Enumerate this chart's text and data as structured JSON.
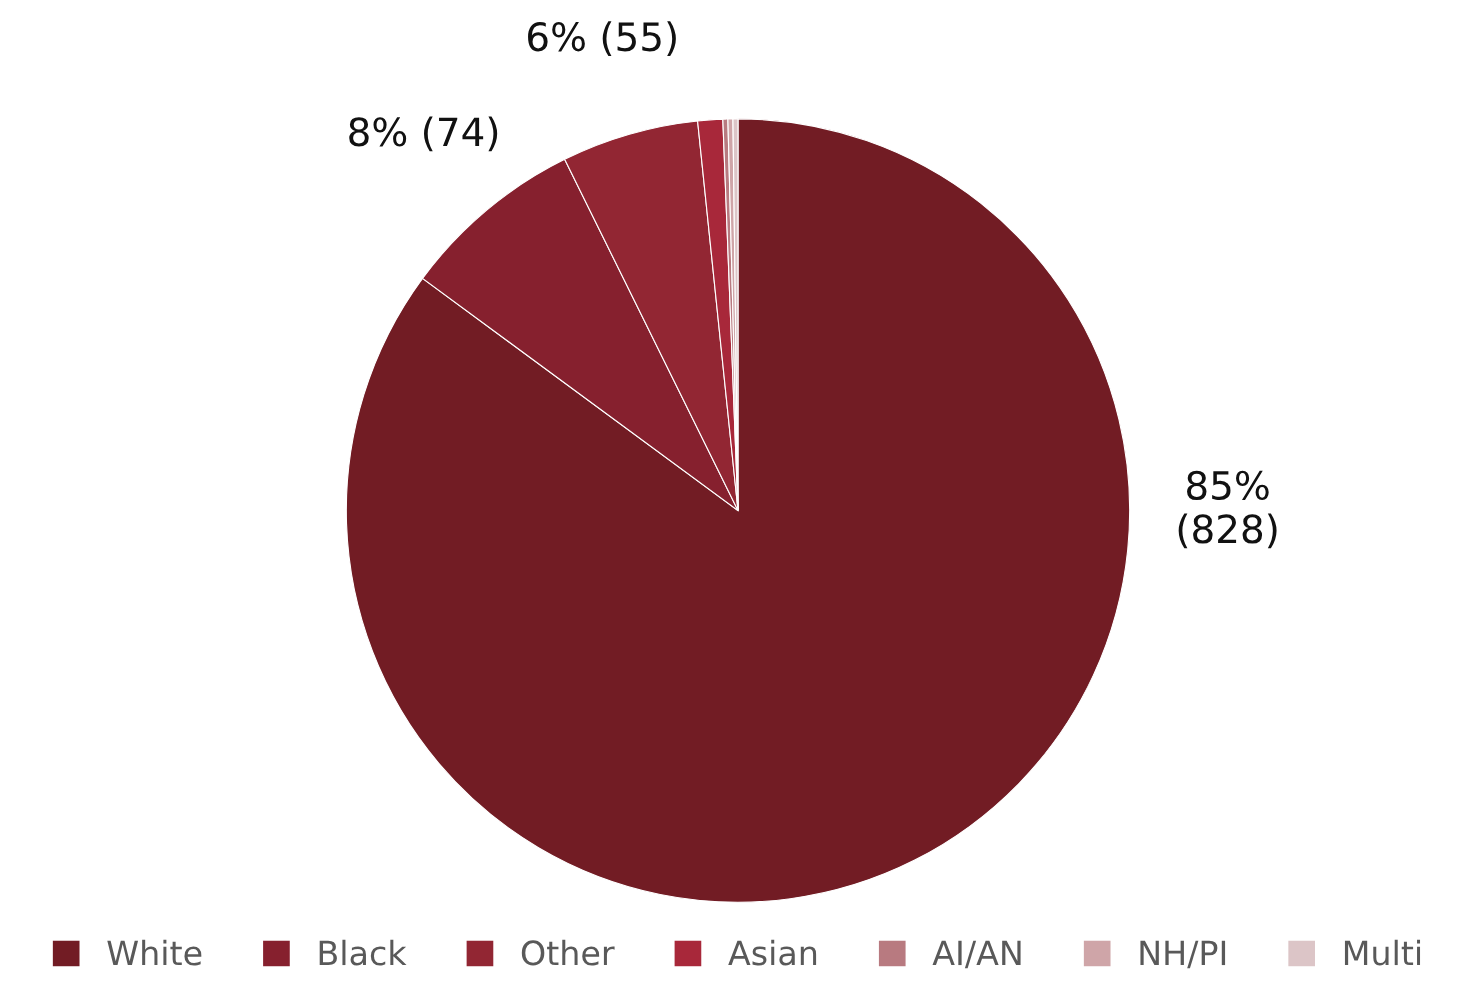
{
  "chart_data": {
    "type": "pie",
    "categories": [
      "White",
      "Black",
      "Other",
      "Asian",
      "AI/AN",
      "NH/PI",
      "Multi"
    ],
    "values": [
      828,
      74,
      55,
      10,
      2,
      2,
      2
    ],
    "colors": [
      "#721c24",
      "#86202e",
      "#922633",
      "#a8283a",
      "#b87a80",
      "#cfa5a8",
      "#dcc5c7"
    ],
    "value_labels": [
      "85%\n(828)",
      "8% (74)",
      "6% (55)",
      null,
      null,
      null,
      null
    ],
    "legend": "bottom"
  }
}
